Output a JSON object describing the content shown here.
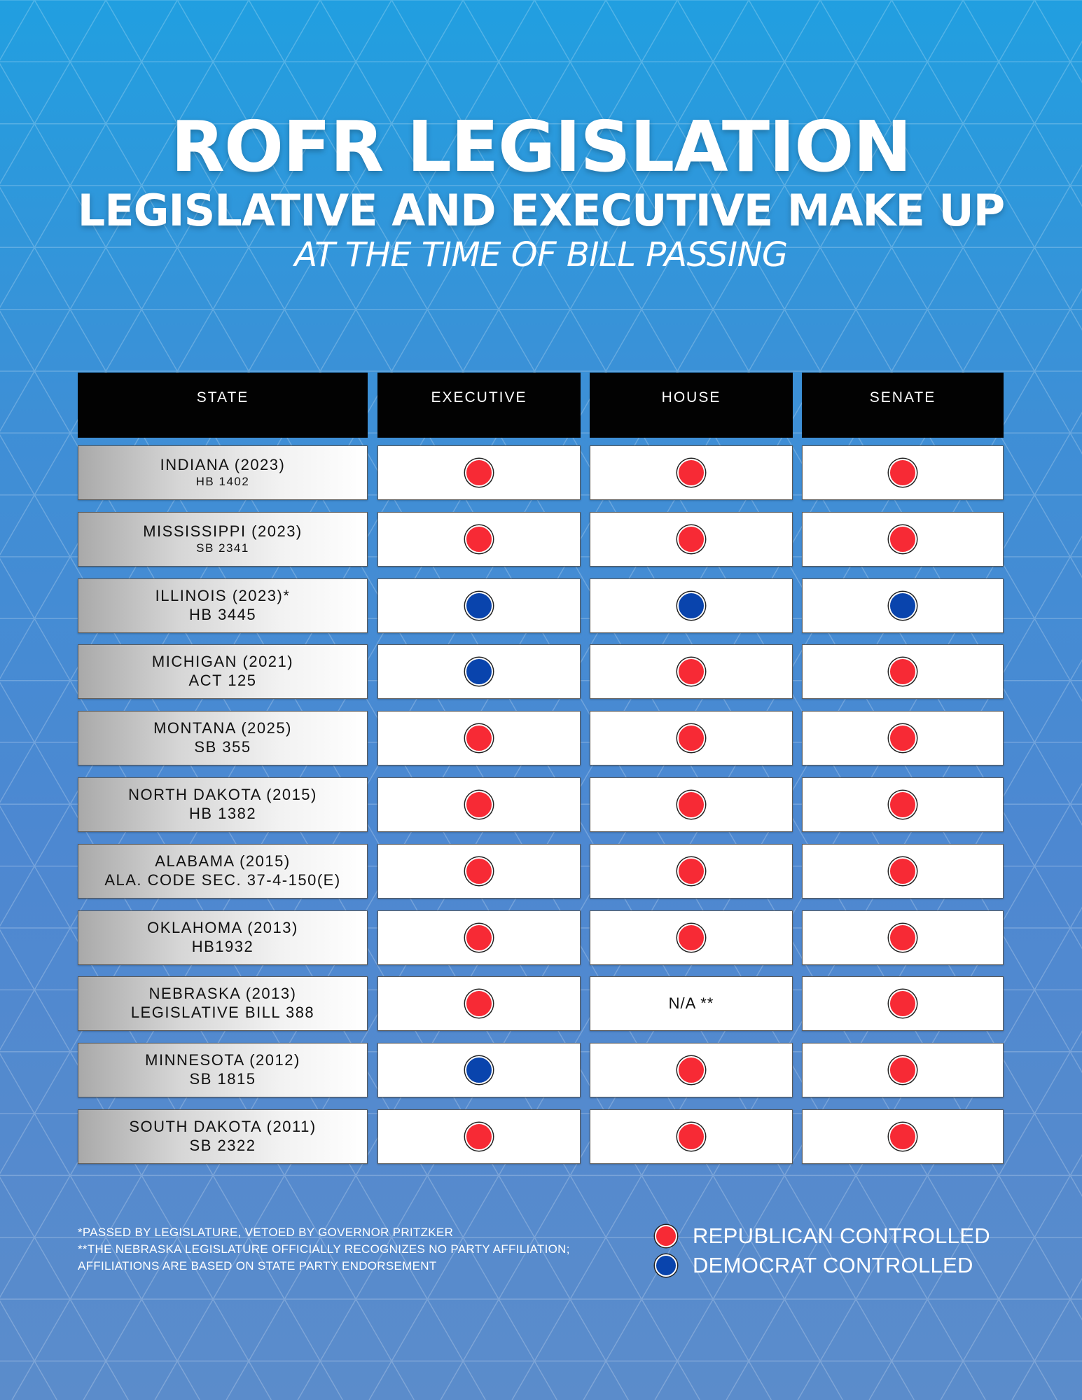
{
  "header": {
    "title": "ROFR LEGISLATION",
    "subtitle": "LEGISLATIVE AND EXECUTIVE MAKE UP",
    "subtitle2": "AT THE TIME OF BILL PASSING"
  },
  "colors": {
    "republican": "#f72a35",
    "democrat": "#0944ad"
  },
  "table": {
    "columns": [
      "STATE",
      "EXECUTIVE",
      "HOUSE",
      "SENATE"
    ],
    "rows": [
      {
        "state": "INDIANA (2023)",
        "bill": "HB 1402",
        "executive": "R",
        "house": "R",
        "senate": "R"
      },
      {
        "state": "MISSISSIPPI (2023)",
        "bill": "SB 2341",
        "executive": "R",
        "house": "R",
        "senate": "R"
      },
      {
        "state": "ILLINOIS (2023)*",
        "bill": "HB 3445",
        "executive": "D",
        "house": "D",
        "senate": "D"
      },
      {
        "state": "MICHIGAN (2021)",
        "bill": "ACT 125",
        "executive": "D",
        "house": "R",
        "senate": "R"
      },
      {
        "state": "MONTANA (2025)",
        "bill": "SB 355",
        "executive": "R",
        "house": "R",
        "senate": "R"
      },
      {
        "state": "NORTH DAKOTA (2015)",
        "bill": "HB 1382",
        "executive": "R",
        "house": "R",
        "senate": "R"
      },
      {
        "state": "ALABAMA (2015)",
        "bill": "ALA. CODE SEC. 37-4-150(E)",
        "executive": "R",
        "house": "R",
        "senate": "R"
      },
      {
        "state": "OKLAHOMA (2013)",
        "bill": "HB1932",
        "executive": "R",
        "house": "R",
        "senate": "R"
      },
      {
        "state": "NEBRASKA (2013)",
        "bill": "LEGISLATIVE BILL 388",
        "executive": "R",
        "house": "N/A **",
        "senate": "R"
      },
      {
        "state": "MINNESOTA (2012)",
        "bill": "SB 1815",
        "executive": "D",
        "house": "R",
        "senate": "R"
      },
      {
        "state": "SOUTH DAKOTA (2011)",
        "bill": "SB 2322",
        "executive": "R",
        "house": "R",
        "senate": "R"
      }
    ]
  },
  "footnotes": [
    "*PASSED BY LEGISLATURE, VETOED BY GOVERNOR PRITZKER",
    "**THE NEBRASKA LEGISLATURE OFFICIALLY RECOGNIZES NO PARTY AFFILIATION;",
    "AFFILIATIONS ARE BASED ON STATE PARTY ENDORSEMENT"
  ],
  "legend": [
    {
      "label": "REPUBLICAN CONTROLLED",
      "party": "R"
    },
    {
      "label": "DEMOCRAT CONTROLLED",
      "party": "D"
    }
  ]
}
